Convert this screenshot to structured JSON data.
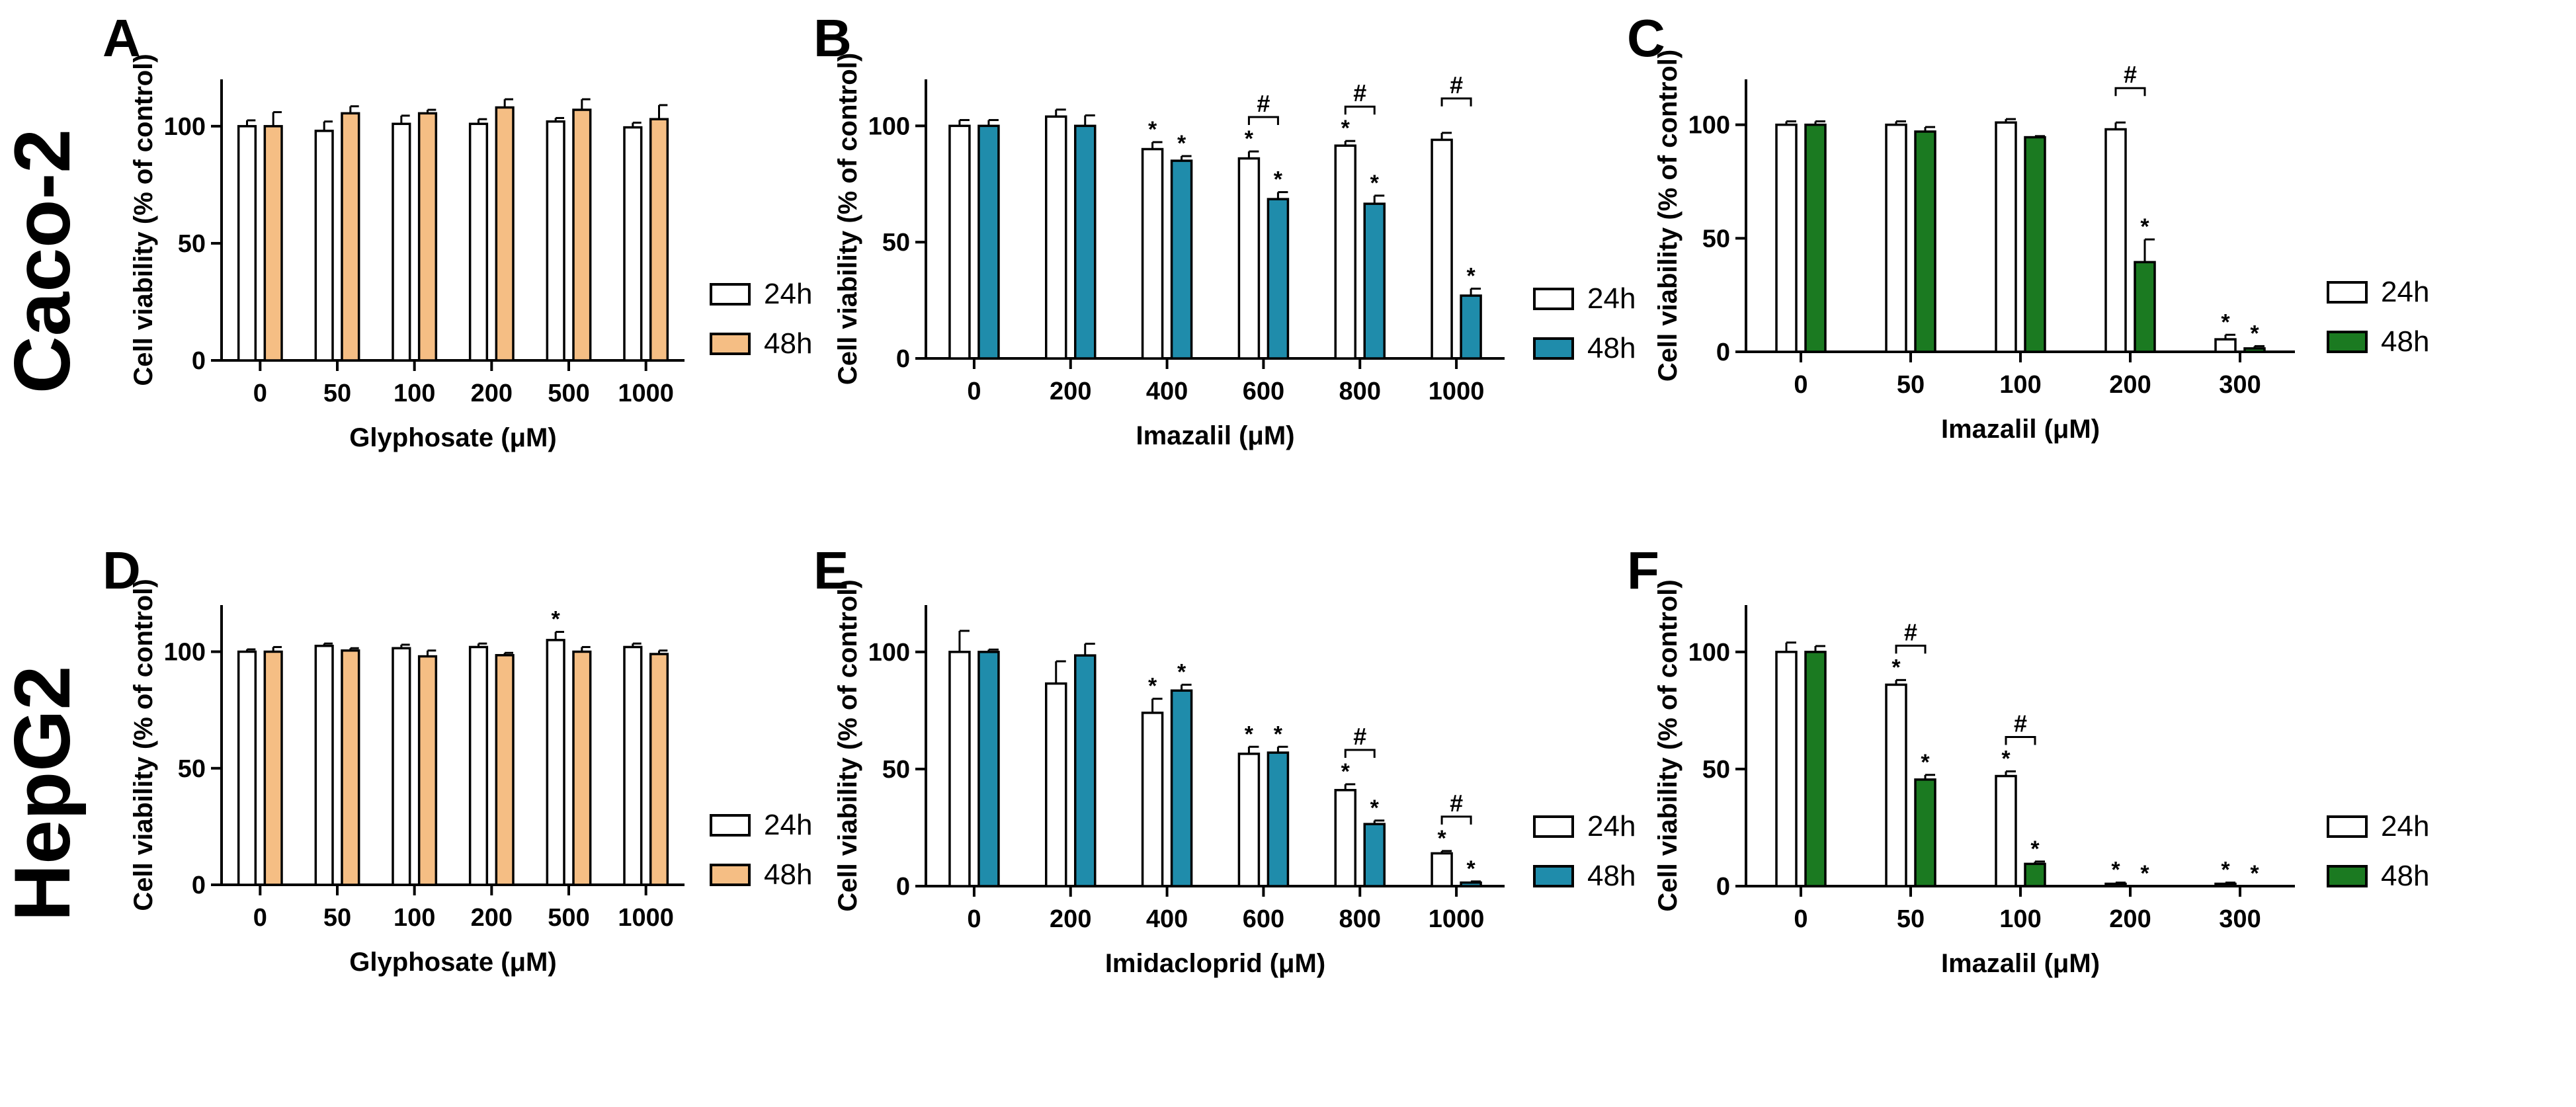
{
  "figure": {
    "row_labels": [
      "Caco-2",
      "HepG2"
    ],
    "legend": [
      "24h",
      "48h"
    ]
  },
  "chart_data": [
    {
      "panel": "A",
      "type": "bar",
      "title": "",
      "xlabel": "Glyphosate (μM)",
      "ylabel": "Cell viability (% of control)",
      "ylim": [
        0,
        120
      ],
      "yticks": [
        0,
        50,
        100
      ],
      "categories": [
        "0",
        "50",
        "100",
        "200",
        "500",
        "1000"
      ],
      "color48": "#F5BE84",
      "series": [
        {
          "name": "24h",
          "values": [
            100,
            98,
            101,
            101,
            102,
            99.5
          ],
          "errors": [
            2.5,
            4,
            3.5,
            2,
            1.5,
            2
          ]
        },
        {
          "name": "48h",
          "values": [
            100,
            105.5,
            105.5,
            108,
            107,
            103
          ],
          "errors": [
            6,
            3,
            1.5,
            3.5,
            4.5,
            6
          ]
        }
      ],
      "stars24": [
        false,
        false,
        false,
        false,
        false,
        false
      ],
      "stars48": [
        false,
        false,
        false,
        false,
        false,
        false
      ],
      "hash": []
    },
    {
      "panel": "B",
      "type": "bar",
      "title": "",
      "xlabel": "Imazalil (μM)",
      "ylabel": "Cell viability (% of control)",
      "ylim": [
        0,
        120
      ],
      "yticks": [
        0,
        50,
        100
      ],
      "categories": [
        "0",
        "200",
        "400",
        "600",
        "800",
        "1000"
      ],
      "color48": "#1F8CAB",
      "series": [
        {
          "name": "24h",
          "values": [
            100,
            104,
            90,
            86,
            91.5,
            94
          ],
          "errors": [
            2.5,
            3,
            3,
            3,
            2,
            3
          ]
        },
        {
          "name": "48h",
          "values": [
            100,
            100,
            85,
            68.5,
            66.5,
            27
          ],
          "errors": [
            2.5,
            4.5,
            2,
            3,
            3.5,
            3
          ]
        }
      ],
      "stars24": [
        false,
        false,
        true,
        true,
        true,
        false
      ],
      "stars48": [
        false,
        false,
        true,
        true,
        true,
        true
      ],
      "hash": [
        3,
        4,
        5
      ]
    },
    {
      "panel": "C",
      "type": "bar",
      "title": "",
      "xlabel": "Imazalil (μM)",
      "ylabel": "Cell viability (% of control)",
      "ylim": [
        0,
        120
      ],
      "yticks": [
        0,
        50,
        100
      ],
      "categories": [
        "0",
        "50",
        "100",
        "200",
        "300"
      ],
      "color48": "#1B7A21",
      "series": [
        {
          "name": "24h",
          "values": [
            100,
            100,
            101,
            98,
            5.5
          ],
          "errors": [
            1.5,
            1.5,
            1.5,
            3,
            2
          ]
        },
        {
          "name": "48h",
          "values": [
            100,
            97,
            94.5,
            39.5,
            1.5
          ],
          "errors": [
            1.5,
            2,
            0.5,
            10,
            1
          ]
        }
      ],
      "stars24": [
        false,
        false,
        false,
        false,
        true
      ],
      "stars48": [
        false,
        false,
        false,
        true,
        true
      ],
      "hash": [
        3
      ]
    },
    {
      "panel": "D",
      "type": "bar",
      "title": "",
      "xlabel": "Glyphosate (μM)",
      "ylabel": "Cell viability (% of control)",
      "ylim": [
        0,
        120
      ],
      "yticks": [
        0,
        50,
        100
      ],
      "categories": [
        "0",
        "50",
        "100",
        "200",
        "500",
        "1000"
      ],
      "color48": "#F5BE84",
      "series": [
        {
          "name": "24h",
          "values": [
            100,
            102.5,
            101.5,
            102,
            105,
            102
          ],
          "errors": [
            1,
            1,
            1.5,
            1.5,
            3.5,
            1.5
          ]
        },
        {
          "name": "48h",
          "values": [
            100,
            100.5,
            98,
            98.5,
            100,
            99
          ],
          "errors": [
            2,
            1,
            2.5,
            1,
            2,
            1.5
          ]
        }
      ],
      "stars24": [
        false,
        false,
        false,
        false,
        true,
        false
      ],
      "stars48": [
        false,
        false,
        false,
        false,
        false,
        false
      ],
      "hash": []
    },
    {
      "panel": "E",
      "type": "bar",
      "title": "",
      "xlabel": "Imidacloprid (μM)",
      "ylabel": "Cell viability (% of control)",
      "ylim": [
        0,
        120
      ],
      "yticks": [
        0,
        50,
        100
      ],
      "categories": [
        "0",
        "200",
        "400",
        "600",
        "800",
        "1000"
      ],
      "color48": "#1F8CAB",
      "series": [
        {
          "name": "24h",
          "values": [
            100,
            86.5,
            74,
            56.5,
            41,
            14
          ],
          "errors": [
            9,
            9.5,
            6,
            3,
            2.5,
            1
          ]
        },
        {
          "name": "48h",
          "values": [
            100,
            98.5,
            83.5,
            57,
            26.5,
            1.5
          ],
          "errors": [
            1,
            5,
            2.5,
            2.5,
            1.5,
            0.5
          ]
        }
      ],
      "stars24": [
        false,
        false,
        true,
        true,
        true,
        true
      ],
      "stars48": [
        false,
        false,
        true,
        true,
        true,
        true
      ],
      "hash": [
        4,
        5
      ]
    },
    {
      "panel": "F",
      "type": "bar",
      "title": "",
      "xlabel": "Imazalil (μM)",
      "ylabel": "Cell viability (% of control)",
      "ylim": [
        0,
        120
      ],
      "yticks": [
        0,
        50,
        100
      ],
      "categories": [
        "0",
        "50",
        "100",
        "200",
        "300"
      ],
      "color48": "#1B7A21",
      "series": [
        {
          "name": "24h",
          "values": [
            100,
            86,
            47,
            1,
            1
          ],
          "errors": [
            4,
            2,
            2,
            0.5,
            0.5
          ]
        },
        {
          "name": "48h",
          "values": [
            100,
            45.5,
            9.5,
            0,
            0
          ],
          "errors": [
            2.5,
            2,
            1,
            0,
            0
          ]
        }
      ],
      "stars24": [
        false,
        true,
        true,
        true,
        true
      ],
      "stars48": [
        false,
        true,
        true,
        true,
        true
      ],
      "hash": [
        1,
        2
      ]
    }
  ]
}
